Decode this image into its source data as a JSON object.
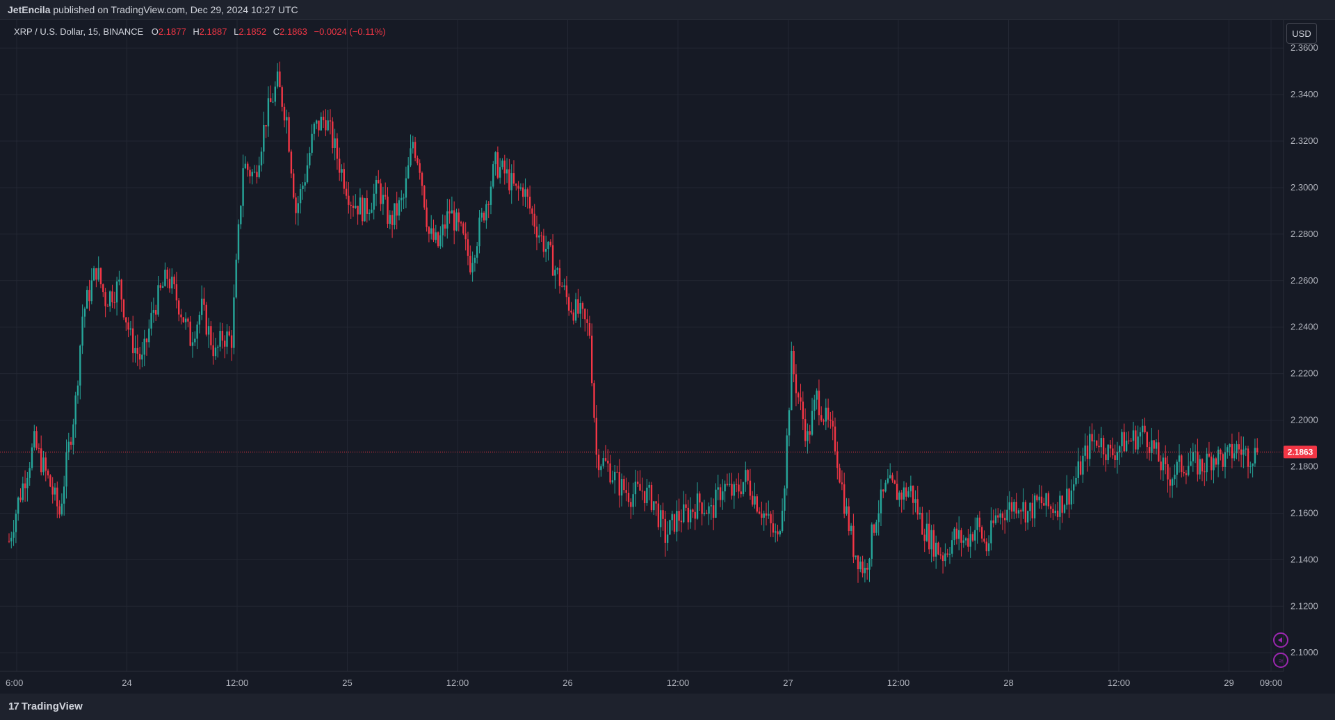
{
  "header": {
    "author": "JetEncila",
    "published_text": " published on TradingView.com, Dec 29, 2024 10:27 UTC"
  },
  "legend": {
    "symbol": "XRP / U.S. Dollar, 15, BINANCE",
    "open_label": "O",
    "open": "2.1877",
    "high_label": "H",
    "high": "2.1887",
    "low_label": "L",
    "low": "2.1852",
    "close_label": "C",
    "close": "2.1863",
    "change": "−0.0024 (−0.11%)"
  },
  "currency_button": "USD",
  "footer": {
    "brand": "TradingView",
    "logo_mark": "17"
  },
  "colors": {
    "background": "#161a25",
    "up": "#26a69a",
    "down": "#f23645",
    "grid": "#232733",
    "price_line": "#f23645",
    "price_label_bg": "#f23645"
  },
  "icons": [
    "tradingview-logo-icon",
    "alert-icon",
    "settings-icon"
  ],
  "chart_data": {
    "type": "candlestick",
    "interval": "15",
    "last_price": "2.1863",
    "y_axis": {
      "ylim": [
        2.092,
        2.372
      ],
      "ticks": [
        "2.3600",
        "2.3400",
        "2.3200",
        "2.3000",
        "2.2800",
        "2.2600",
        "2.2400",
        "2.2200",
        "2.2000",
        "2.1800",
        "2.1600",
        "2.1400",
        "2.1200",
        "2.1000"
      ]
    },
    "x_axis": {
      "ticks": [
        "6:00",
        "24",
        "12:00",
        "25",
        "12:00",
        "26",
        "12:00",
        "27",
        "12:00",
        "28",
        "12:00",
        "29",
        "09:00"
      ]
    },
    "path": [
      [
        0,
        2.148
      ],
      [
        4,
        2.165
      ],
      [
        11,
        2.19
      ],
      [
        18,
        2.172
      ],
      [
        22,
        2.16
      ],
      [
        26,
        2.188
      ],
      [
        29,
        2.208
      ],
      [
        32,
        2.245
      ],
      [
        38,
        2.265
      ],
      [
        42,
        2.252
      ],
      [
        48,
        2.258
      ],
      [
        53,
        2.235
      ],
      [
        58,
        2.225
      ],
      [
        63,
        2.248
      ],
      [
        69,
        2.262
      ],
      [
        74,
        2.25
      ],
      [
        79,
        2.235
      ],
      [
        84,
        2.248
      ],
      [
        90,
        2.228
      ],
      [
        93,
        2.236
      ],
      [
        97,
        2.235
      ],
      [
        102,
        2.31
      ],
      [
        107,
        2.305
      ],
      [
        112,
        2.33
      ],
      [
        117,
        2.345
      ],
      [
        121,
        2.33
      ],
      [
        125,
        2.29
      ],
      [
        129,
        2.305
      ],
      [
        133,
        2.325
      ],
      [
        138,
        2.33
      ],
      [
        144,
        2.31
      ],
      [
        149,
        2.295
      ],
      [
        155,
        2.29
      ],
      [
        161,
        2.3
      ],
      [
        166,
        2.285
      ],
      [
        172,
        2.295
      ],
      [
        176,
        2.32
      ],
      [
        179,
        2.31
      ],
      [
        183,
        2.28
      ],
      [
        187,
        2.275
      ],
      [
        192,
        2.29
      ],
      [
        197,
        2.28
      ],
      [
        201,
        2.268
      ],
      [
        207,
        2.29
      ],
      [
        212,
        2.31
      ],
      [
        217,
        2.305
      ],
      [
        221,
        2.298
      ],
      [
        224,
        2.3
      ],
      [
        228,
        2.288
      ],
      [
        232,
        2.278
      ],
      [
        236,
        2.27
      ],
      [
        240,
        2.26
      ],
      [
        244,
        2.25
      ],
      [
        249,
        2.245
      ],
      [
        253,
        2.238
      ],
      [
        256,
        2.185
      ],
      [
        261,
        2.18
      ],
      [
        266,
        2.172
      ],
      [
        271,
        2.168
      ],
      [
        276,
        2.17
      ],
      [
        281,
        2.165
      ],
      [
        286,
        2.15
      ],
      [
        291,
        2.158
      ],
      [
        296,
        2.16
      ],
      [
        301,
        2.165
      ],
      [
        306,
        2.16
      ],
      [
        311,
        2.172
      ],
      [
        316,
        2.168
      ],
      [
        321,
        2.175
      ],
      [
        326,
        2.165
      ],
      [
        330,
        2.158
      ],
      [
        335,
        2.148
      ],
      [
        338,
        2.175
      ],
      [
        341,
        2.225
      ],
      [
        345,
        2.205
      ],
      [
        348,
        2.192
      ],
      [
        352,
        2.21
      ],
      [
        356,
        2.2
      ],
      [
        360,
        2.19
      ],
      [
        364,
        2.165
      ],
      [
        368,
        2.145
      ],
      [
        373,
        2.135
      ],
      [
        378,
        2.16
      ],
      [
        383,
        2.172
      ],
      [
        388,
        2.168
      ],
      [
        393,
        2.17
      ],
      [
        398,
        2.155
      ],
      [
        402,
        2.148
      ],
      [
        407,
        2.142
      ],
      [
        412,
        2.15
      ],
      [
        417,
        2.148
      ],
      [
        422,
        2.155
      ],
      [
        426,
        2.145
      ],
      [
        430,
        2.158
      ],
      [
        435,
        2.162
      ],
      [
        440,
        2.165
      ],
      [
        444,
        2.16
      ],
      [
        449,
        2.165
      ],
      [
        454,
        2.162
      ],
      [
        459,
        2.165
      ],
      [
        463,
        2.17
      ],
      [
        467,
        2.18
      ],
      [
        471,
        2.19
      ],
      [
        475,
        2.192
      ],
      [
        480,
        2.185
      ],
      [
        485,
        2.19
      ],
      [
        490,
        2.192
      ],
      [
        495,
        2.195
      ],
      [
        500,
        2.185
      ],
      [
        505,
        2.175
      ],
      [
        510,
        2.18
      ],
      [
        515,
        2.182
      ],
      [
        520,
        2.18
      ],
      [
        525,
        2.185
      ],
      [
        530,
        2.183
      ],
      [
        535,
        2.188
      ],
      [
        540,
        2.185
      ],
      [
        544,
        2.186
      ]
    ]
  }
}
